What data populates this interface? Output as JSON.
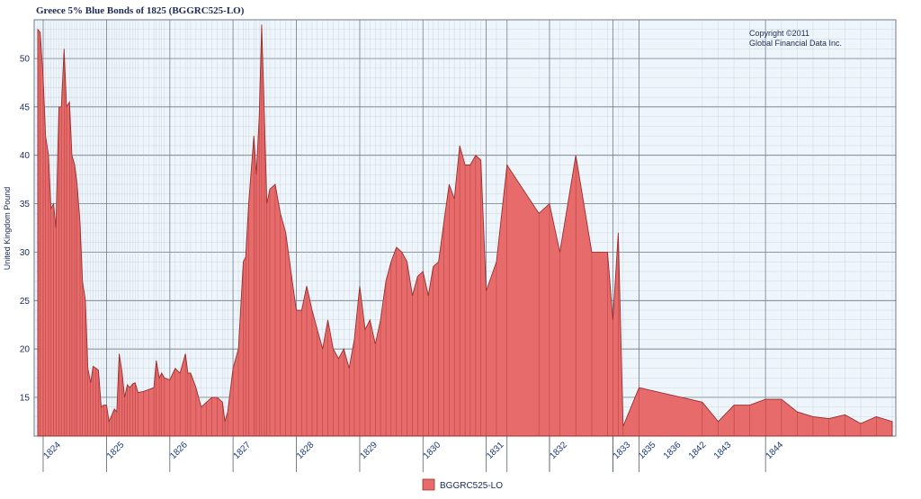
{
  "chart_data": {
    "type": "area",
    "title": "Greece 5% Blue Bonds of 1825 (BGGRC525-LO)",
    "ylabel": "United Kingdom Pound",
    "copyright": [
      "Copyright ©2011",
      "Global Financial Data Inc."
    ],
    "ylim": [
      11,
      54
    ],
    "yticks": [
      15,
      20,
      25,
      30,
      35,
      40,
      45,
      50
    ],
    "grid": true,
    "legend_position": "bottom-center",
    "series": [
      {
        "name": "BGGRC525-LO",
        "color": "#e76b6b",
        "stroke": "#9a2f2f",
        "points": [
          [
            "1823-12-01",
            53
          ],
          [
            "1823-12-15",
            52.7
          ],
          [
            "1824-01-01",
            48
          ],
          [
            "1824-01-15",
            42
          ],
          [
            "1824-02-01",
            40
          ],
          [
            "1824-02-15",
            34.5
          ],
          [
            "1824-03-01",
            35
          ],
          [
            "1824-03-15",
            32.5
          ],
          [
            "1824-04-01",
            45
          ],
          [
            "1824-04-15",
            45
          ],
          [
            "1824-05-01",
            51
          ],
          [
            "1824-05-15",
            45
          ],
          [
            "1824-06-01",
            45.5
          ],
          [
            "1824-06-15",
            40
          ],
          [
            "1824-07-01",
            39
          ],
          [
            "1824-07-15",
            37
          ],
          [
            "1824-08-01",
            33
          ],
          [
            "1824-08-15",
            27
          ],
          [
            "1824-09-01",
            25
          ],
          [
            "1824-09-15",
            18
          ],
          [
            "1824-10-01",
            16.5
          ],
          [
            "1824-10-15",
            18.2
          ],
          [
            "1824-11-01",
            18
          ],
          [
            "1824-11-15",
            17.8
          ],
          [
            "1824-12-01",
            14
          ],
          [
            "1824-12-15",
            14.2
          ],
          [
            "1825-01-01",
            14.2
          ],
          [
            "1825-01-15",
            12.5
          ],
          [
            "1825-02-01",
            13.2
          ],
          [
            "1825-02-15",
            13.8
          ],
          [
            "1825-03-01",
            13.5
          ],
          [
            "1825-03-15",
            19.5
          ],
          [
            "1825-04-01",
            17.5
          ],
          [
            "1825-04-15",
            15
          ],
          [
            "1825-05-01",
            16.3
          ],
          [
            "1825-05-15",
            16
          ],
          [
            "1825-06-01",
            16.4
          ],
          [
            "1825-06-15",
            16.5
          ],
          [
            "1825-07-01",
            15.5
          ],
          [
            "1825-08-01",
            15.6
          ],
          [
            "1825-09-01",
            15.8
          ],
          [
            "1825-10-01",
            16
          ],
          [
            "1825-10-15",
            18.8
          ],
          [
            "1825-11-01",
            17
          ],
          [
            "1825-11-15",
            17.5
          ],
          [
            "1825-12-01",
            17
          ],
          [
            "1826-01-01",
            16.8
          ],
          [
            "1826-02-01",
            18
          ],
          [
            "1826-03-01",
            17.5
          ],
          [
            "1826-04-01",
            19.5
          ],
          [
            "1826-04-15",
            17.5
          ],
          [
            "1826-05-01",
            17.5
          ],
          [
            "1826-06-01",
            16
          ],
          [
            "1826-07-01",
            14
          ],
          [
            "1826-08-01",
            14.5
          ],
          [
            "1826-09-01",
            15
          ],
          [
            "1826-10-01",
            15
          ],
          [
            "1826-11-01",
            14.5
          ],
          [
            "1826-11-15",
            12.5
          ],
          [
            "1826-12-01",
            13.5
          ],
          [
            "1827-01-01",
            18
          ],
          [
            "1827-02-01",
            20
          ],
          [
            "1827-03-01",
            29
          ],
          [
            "1827-03-15",
            29.5
          ],
          [
            "1827-04-01",
            35
          ],
          [
            "1827-05-01",
            42
          ],
          [
            "1827-05-15",
            38
          ],
          [
            "1827-06-01",
            44
          ],
          [
            "1827-06-15",
            53.5
          ],
          [
            "1827-07-01",
            44
          ],
          [
            "1827-07-15",
            35
          ],
          [
            "1827-08-01",
            36.5
          ],
          [
            "1827-09-01",
            37
          ],
          [
            "1827-10-01",
            34
          ],
          [
            "1827-11-01",
            32
          ],
          [
            "1827-12-01",
            28
          ],
          [
            "1828-01-01",
            24
          ],
          [
            "1828-02-01",
            24
          ],
          [
            "1828-03-01",
            26.5
          ],
          [
            "1828-04-01",
            24
          ],
          [
            "1828-05-01",
            22
          ],
          [
            "1828-06-01",
            20
          ],
          [
            "1828-07-01",
            23
          ],
          [
            "1828-08-01",
            20
          ],
          [
            "1828-09-01",
            19
          ],
          [
            "1828-10-01",
            20
          ],
          [
            "1828-11-01",
            18
          ],
          [
            "1828-12-01",
            21
          ],
          [
            "1829-01-01",
            26.5
          ],
          [
            "1829-02-01",
            22
          ],
          [
            "1829-03-01",
            23
          ],
          [
            "1829-04-01",
            20.5
          ],
          [
            "1829-05-01",
            23
          ],
          [
            "1829-06-01",
            27
          ],
          [
            "1829-07-01",
            29
          ],
          [
            "1829-08-01",
            30.5
          ],
          [
            "1829-09-01",
            30
          ],
          [
            "1829-10-01",
            29
          ],
          [
            "1829-11-01",
            25.5
          ],
          [
            "1829-12-01",
            27.5
          ],
          [
            "1830-01-01",
            28
          ],
          [
            "1830-02-01",
            25.5
          ],
          [
            "1830-03-01",
            28.5
          ],
          [
            "1830-04-01",
            29
          ],
          [
            "1830-05-01",
            33
          ],
          [
            "1830-06-01",
            37
          ],
          [
            "1830-07-01",
            35.5
          ],
          [
            "1830-08-01",
            41
          ],
          [
            "1830-09-01",
            39
          ],
          [
            "1830-10-01",
            39
          ],
          [
            "1830-11-01",
            40
          ],
          [
            "1830-12-01",
            39.5
          ],
          [
            "1831-01-01",
            26
          ],
          [
            "1831-03-01",
            29
          ],
          [
            "1831-05-01",
            39
          ],
          [
            "1831-11-01",
            34
          ],
          [
            "1832-01-01",
            35
          ],
          [
            "1832-03-01",
            30
          ],
          [
            "1832-06-01",
            40
          ],
          [
            "1832-09-01",
            30
          ],
          [
            "1832-12-01",
            30
          ],
          [
            "1833-01-01",
            23
          ],
          [
            "1833-02-01",
            32
          ],
          [
            "1833-03-01",
            12
          ],
          [
            "1833-06-01",
            16
          ],
          [
            "1834-06-01",
            14.5
          ],
          [
            "1834-09-01",
            12.5
          ],
          [
            "1834-12-01",
            14.2
          ],
          [
            "1835-03-01",
            14.2
          ],
          [
            "1835-06-01",
            14.8
          ],
          [
            "1835-09-01",
            14.8
          ],
          [
            "1835-12-01",
            13.5
          ],
          [
            "1836-03-01",
            13
          ],
          [
            "1836-06-01",
            12.8
          ],
          [
            "1836-09-01",
            13.2
          ],
          [
            "1836-12-01",
            12.3
          ],
          [
            "1837-03-01",
            13
          ],
          [
            "1837-06-01",
            12.5
          ]
        ]
      }
    ],
    "x_labels": [
      {
        "label": "1824",
        "date": "1824-01-01"
      },
      {
        "label": "1825",
        "date": "1825-01-01"
      },
      {
        "label": "1826",
        "date": "1826-01-01"
      },
      {
        "label": "1827",
        "date": "1827-01-01"
      },
      {
        "label": "1828",
        "date": "1828-01-01"
      },
      {
        "label": "1829",
        "date": "1829-01-01"
      },
      {
        "label": "1830",
        "date": "1830-01-01"
      },
      {
        "label": "1831",
        "date": "1831-01-01"
      },
      {
        "label": "1832",
        "date": "1832-01-01"
      },
      {
        "label": "1833",
        "date": "1833-01-01"
      },
      {
        "label": "1835",
        "date": "1831-05-01"
      },
      {
        "label": "1836",
        "date": "1832-01-01"
      },
      {
        "label": "1842",
        "date": "1833-01-01"
      },
      {
        "label": "1843",
        "date": "1833-06-01"
      },
      {
        "label": "1844",
        "date": "1835-06-01"
      }
    ]
  }
}
